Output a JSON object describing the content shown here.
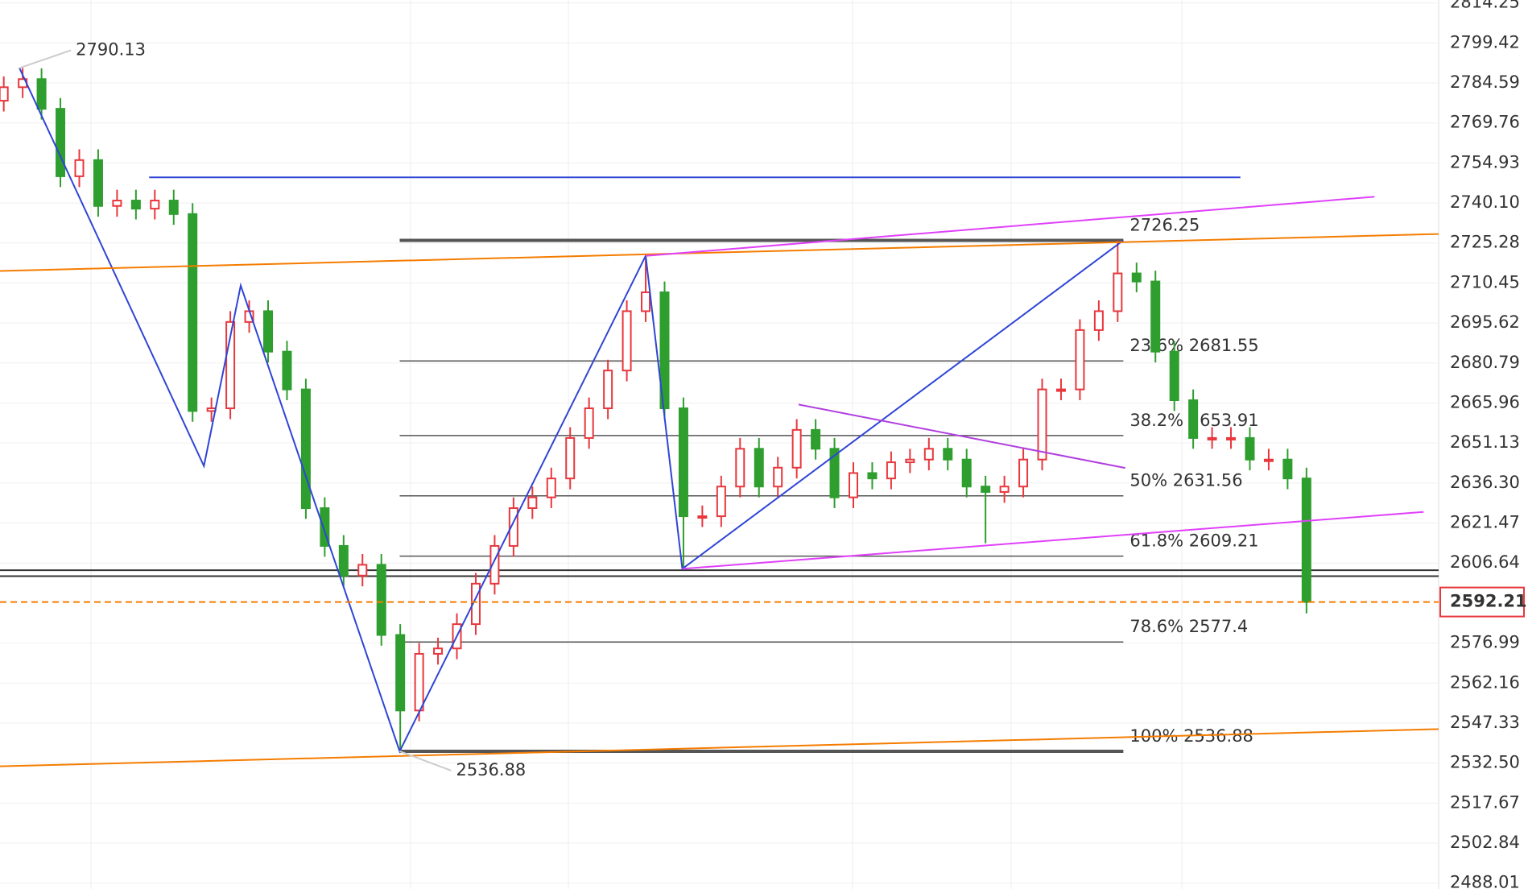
{
  "chart_data": {
    "type": "candlestick",
    "up_color": "#e8373d",
    "down_color": "#2e9e2e",
    "open": [
      2778,
      2783,
      2786,
      2775,
      2750,
      2756,
      2739,
      2741,
      2738,
      2741,
      2736,
      2663,
      2664,
      2696,
      2700,
      2685,
      2671,
      2627,
      2613,
      2602,
      2606,
      2580,
      2552,
      2573,
      2575,
      2584,
      2599,
      2613,
      2627,
      2631,
      2638,
      2653,
      2664,
      2678,
      2700,
      2707,
      2664,
      2624,
      2624,
      2635,
      2649,
      2635,
      2642,
      2656,
      2649,
      2631,
      2640,
      2638,
      2644,
      2645,
      2649,
      2645,
      2635,
      2633,
      2635,
      2645,
      2671,
      2671,
      2693,
      2700,
      2714,
      2711,
      2685,
      2667,
      2653,
      2653,
      2653,
      2645,
      2645,
      2638
    ],
    "high": [
      2787,
      2790.13,
      2790,
      2779,
      2760,
      2760,
      2745,
      2745,
      2745,
      2745,
      2740,
      2668,
      2700,
      2704,
      2704,
      2689,
      2675,
      2631,
      2617,
      2610,
      2610,
      2584,
      2577,
      2579,
      2588,
      2603,
      2617,
      2631,
      2635,
      2642,
      2657,
      2668,
      2682,
      2704,
      2720.5,
      2711,
      2668,
      2628,
      2639,
      2653,
      2653,
      2646,
      2660,
      2660,
      2653,
      2644,
      2644,
      2648,
      2649,
      2653,
      2653,
      2649,
      2639,
      2639,
      2649,
      2675,
      2675,
      2697,
      2704,
      2726.25,
      2718,
      2715,
      2689,
      2671,
      2657,
      2657,
      2657,
      2649,
      2649,
      2642
    ],
    "low": [
      2774,
      2779,
      2771,
      2746,
      2746,
      2735,
      2735,
      2734,
      2734,
      2732,
      2659,
      2659,
      2660,
      2692,
      2681,
      2667,
      2623,
      2609,
      2598,
      2598,
      2576,
      2536.88,
      2548,
      2569,
      2571,
      2580,
      2595,
      2609,
      2623,
      2627,
      2634,
      2649,
      2660,
      2674,
      2696,
      2660,
      2604.5,
      2620,
      2620,
      2631,
      2631,
      2631,
      2638,
      2645,
      2627,
      2627,
      2634,
      2634,
      2640,
      2641,
      2641,
      2631,
      2614,
      2629,
      2631,
      2641,
      2667,
      2667,
      2689,
      2696,
      2707,
      2681,
      2663,
      2649,
      2649,
      2649,
      2641,
      2641,
      2634,
      2588
    ],
    "close": [
      2783,
      2786,
      2775,
      2750,
      2756,
      2739,
      2741,
      2738,
      2741,
      2736,
      2663,
      2664,
      2696,
      2700,
      2685,
      2671,
      2627,
      2613,
      2602,
      2606,
      2580,
      2552,
      2573,
      2575,
      2584,
      2599,
      2613,
      2627,
      2631,
      2638,
      2653,
      2664,
      2678,
      2700,
      2707,
      2664,
      2624,
      2624,
      2635,
      2649,
      2635,
      2642,
      2656,
      2649,
      2631,
      2640,
      2638,
      2644,
      2645,
      2649,
      2645,
      2635,
      2633,
      2635,
      2645,
      2671,
      2671,
      2693,
      2700,
      2714,
      2711,
      2685,
      2667,
      2653,
      2653,
      2653,
      2645,
      2645,
      2638,
      2592.21
    ],
    "xlim": [
      -0.2,
      76
    ],
    "ylim": [
      2485.84,
      2815.33
    ],
    "yticks": [
      2814.25,
      2799.42,
      2784.59,
      2769.76,
      2754.93,
      {
        "value": 2740.1,
        "label": "2740.10"
      },
      2725.28,
      2710.45,
      2695.62,
      2680.79,
      2665.96,
      2651.13,
      {
        "value": 2636.3,
        "label": "2636.30"
      },
      2621.47,
      2606.64,
      2576.99,
      2562.16,
      2547.33,
      {
        "value": 2532.5,
        "label": "2532.50"
      },
      2517.67,
      2502.84,
      2488.01
    ],
    "grid": true,
    "last_price": 2592.21,
    "last_price_color": "#f57c00",
    "hlines": [
      {
        "value": 2604.0,
        "color": "#333333"
      },
      {
        "value": 2601.8,
        "color": "#333333"
      }
    ],
    "lines": [
      {
        "color": "#2f45d6",
        "points": [
          [
            0.83,
            2790.13
          ],
          [
            10.6,
            2642.6
          ],
          [
            12.55,
            2709.5
          ],
          [
            20.97,
            2536.88
          ],
          [
            34,
            2720.5
          ],
          [
            35.94,
            2604.5
          ],
          [
            59.3,
            2726.25
          ]
        ]
      },
      {
        "color": "#2f45d6",
        "points": [
          [
            7.7,
            2749.6
          ],
          [
            65.5,
            2749.6
          ]
        ]
      },
      {
        "color": "#f57c00",
        "points": [
          [
            -0.2,
            2714.9
          ],
          [
            76,
            2728.6
          ]
        ]
      },
      {
        "color": "#f57c00",
        "points": [
          [
            -0.2,
            2531.3
          ],
          [
            76,
            2545.1
          ]
        ]
      },
      {
        "color": "#e040fb",
        "points": [
          [
            34,
            2720.5
          ],
          [
            72.6,
            2742.4
          ]
        ]
      },
      {
        "color": "#b03ee0",
        "points": [
          [
            42.1,
            2665.4
          ],
          [
            59.4,
            2641.9
          ]
        ]
      },
      {
        "color": "#e040fb",
        "points": [
          [
            35.94,
            2604.5
          ],
          [
            75.2,
            2625.6
          ]
        ]
      }
    ],
    "fib": {
      "start_x": 20.97,
      "end_x": 59.3,
      "color": "#555555",
      "levels": [
        {
          "label": "2726.25",
          "value": 2726.25
        },
        {
          "label": "23.6% 2681.55",
          "value": 2681.55
        },
        {
          "label": "38.2% 2653.91",
          "value": 2653.91
        },
        {
          "label": "50% 2631.56",
          "value": 2631.56
        },
        {
          "label": "61.8% 2609.21",
          "value": 2609.21
        },
        {
          "label": "78.6% 2577.4",
          "value": 2577.4
        },
        {
          "label": "100% 2536.88",
          "value": 2536.88
        }
      ]
    },
    "annotations": [
      {
        "text": "2790.13",
        "x": 0.83,
        "y": 2790.13,
        "side": "above"
      },
      {
        "text": "2536.88",
        "x": 20.97,
        "y": 2536.88,
        "side": "below"
      }
    ]
  }
}
